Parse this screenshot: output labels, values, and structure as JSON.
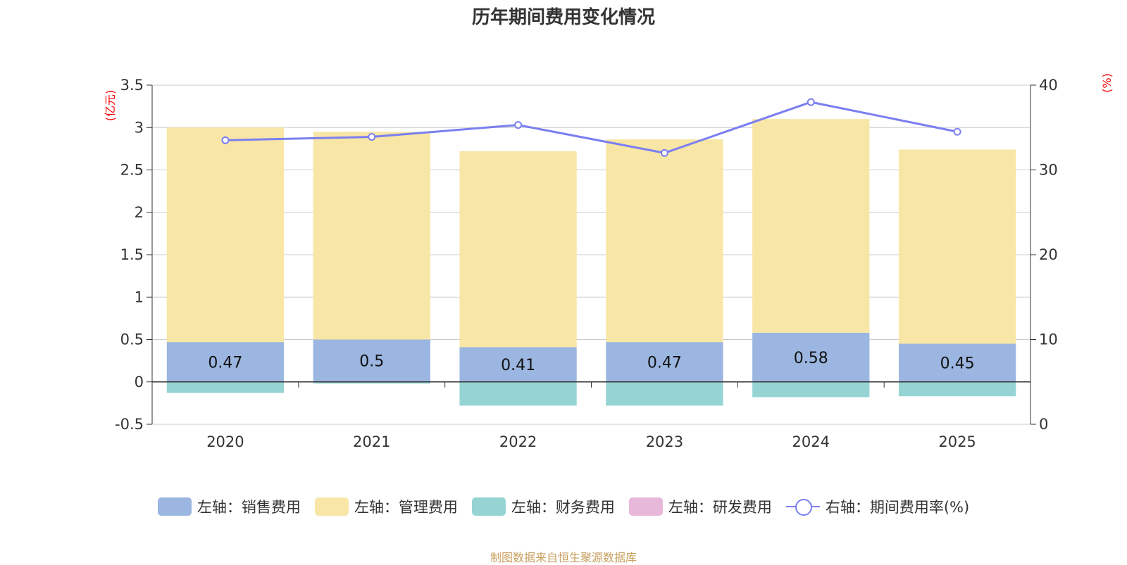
{
  "chart_data": {
    "type": "bar",
    "title": "历年期间费用变化情况",
    "categories": [
      "2020",
      "2021",
      "2022",
      "2023",
      "2024",
      "2025"
    ],
    "series": [
      {
        "name": "左轴：销售费用",
        "axis": "left",
        "stacked": true,
        "color": "#9bb6e0",
        "values": [
          0.47,
          0.5,
          0.41,
          0.47,
          0.58,
          0.45
        ],
        "show_labels": true
      },
      {
        "name": "左轴：管理费用",
        "axis": "left",
        "stacked": true,
        "color": "#f7e6a6",
        "values": [
          2.53,
          2.45,
          2.31,
          2.39,
          2.52,
          2.29
        ]
      },
      {
        "name": "左轴：财务费用",
        "axis": "left",
        "stacked": true,
        "color": "#96d4d4",
        "values": [
          -0.13,
          -0.02,
          -0.28,
          -0.28,
          -0.18,
          -0.17
        ]
      },
      {
        "name": "左轴：研发费用",
        "axis": "left",
        "stacked": true,
        "color": "#e8b8da",
        "values": [
          0,
          0,
          0,
          0,
          0,
          0
        ]
      },
      {
        "name": "右轴：期间费用率(%)",
        "axis": "right",
        "type": "line",
        "color": "#7b7ff0",
        "values": [
          33.5,
          33.9,
          35.3,
          32.0,
          38.0,
          34.5
        ]
      }
    ],
    "left_axis": {
      "label": "(亿元)",
      "ylim": [
        -0.5,
        3.5
      ],
      "ticks": [
        "-0.5",
        "0",
        "0.5",
        "1",
        "1.5",
        "2",
        "2.5",
        "3",
        "3.5"
      ]
    },
    "right_axis": {
      "label": "(%)",
      "ylim": [
        0,
        40
      ],
      "ticks": [
        "0",
        "10",
        "20",
        "30",
        "40"
      ]
    },
    "grid": true,
    "legend_position": "bottom"
  },
  "source_note": "制图数据来自恒生聚源数据库"
}
